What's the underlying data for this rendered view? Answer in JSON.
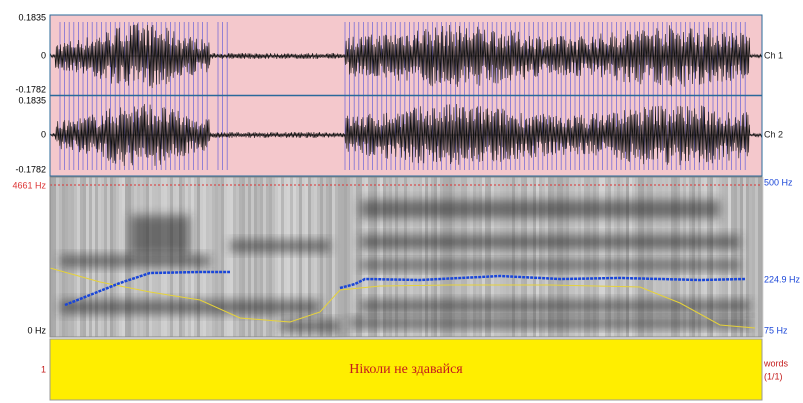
{
  "waveform": {
    "channels": [
      {
        "max": "0.1835",
        "zero": "0",
        "min": "-0.1782",
        "label": "Ch 1"
      },
      {
        "max": "0.1835",
        "zero": "0",
        "min": "-0.1782",
        "label": "Ch 2"
      }
    ]
  },
  "spectrogram": {
    "top": "4661 Hz",
    "bottom": "0 Hz",
    "right_top": "500 Hz",
    "right_mid": "224.9 Hz",
    "right_bottom": "75 Hz"
  },
  "tier": {
    "number": "1",
    "name": "words",
    "count": "(1/1)",
    "text": "Ніколи не здавайся"
  }
}
